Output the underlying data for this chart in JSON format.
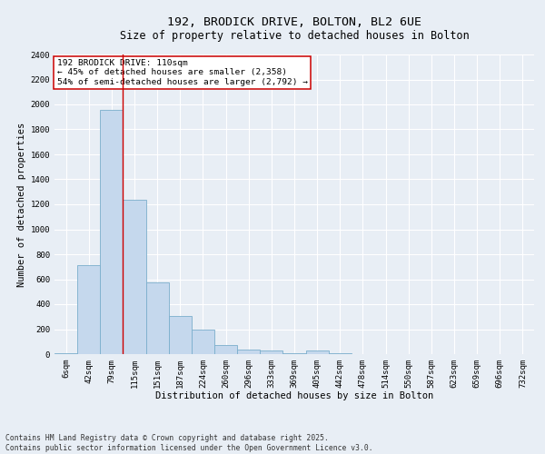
{
  "title_line1": "192, BRODICK DRIVE, BOLTON, BL2 6UE",
  "title_line2": "Size of property relative to detached houses in Bolton",
  "xlabel": "Distribution of detached houses by size in Bolton",
  "ylabel": "Number of detached properties",
  "bar_color": "#c5d8ed",
  "bar_edgecolor": "#7aaecc",
  "background_color": "#e8eef5",
  "grid_color": "#ffffff",
  "categories": [
    "6sqm",
    "42sqm",
    "79sqm",
    "115sqm",
    "151sqm",
    "187sqm",
    "224sqm",
    "260sqm",
    "296sqm",
    "333sqm",
    "369sqm",
    "405sqm",
    "442sqm",
    "478sqm",
    "514sqm",
    "550sqm",
    "587sqm",
    "623sqm",
    "659sqm",
    "696sqm",
    "732sqm"
  ],
  "values": [
    10,
    710,
    1960,
    1240,
    575,
    305,
    200,
    75,
    40,
    28,
    8,
    28,
    5,
    2,
    2,
    2,
    0,
    0,
    0,
    0,
    0
  ],
  "vline_color": "#cc0000",
  "annotation_text": "192 BRODICK DRIVE: 110sqm\n← 45% of detached houses are smaller (2,358)\n54% of semi-detached houses are larger (2,792) →",
  "annotation_box_edgecolor": "#cc0000",
  "annotation_box_facecolor": "#ffffff",
  "footnote": "Contains HM Land Registry data © Crown copyright and database right 2025.\nContains public sector information licensed under the Open Government Licence v3.0.",
  "ylim": [
    0,
    2400
  ],
  "yticks": [
    0,
    200,
    400,
    600,
    800,
    1000,
    1200,
    1400,
    1600,
    1800,
    2000,
    2200,
    2400
  ],
  "title_fontsize": 9.5,
  "subtitle_fontsize": 8.5,
  "tick_fontsize": 6.5,
  "label_fontsize": 7.5,
  "annotation_fontsize": 6.8,
  "footnote_fontsize": 5.8
}
